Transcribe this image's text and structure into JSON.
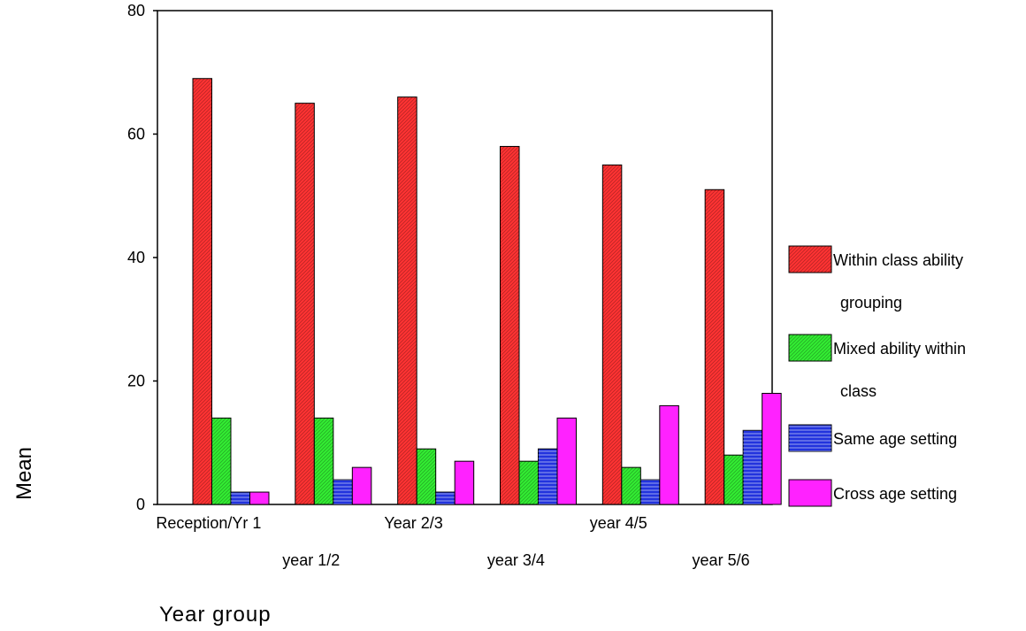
{
  "chart_data": {
    "type": "bar",
    "xlabel": "Year group",
    "ylabel": "Mean",
    "ylim": [
      0,
      80
    ],
    "yticks": [
      0,
      20,
      40,
      60,
      80
    ],
    "grid": false,
    "legend_position": "right",
    "categories": [
      "Reception/Yr 1",
      "year 1/2",
      "Year 2/3",
      "year 3/4",
      "year 4/5",
      "year 5/6"
    ],
    "series": [
      {
        "name": "Within class ability grouping",
        "legend_lines": [
          "Within class ability",
          "grouping"
        ],
        "color": "#ff3333",
        "hatch": "diagonal",
        "values": [
          69,
          65,
          66,
          58,
          55,
          51
        ]
      },
      {
        "name": "Mixed ability within class",
        "legend_lines": [
          "Mixed ability within",
          "class"
        ],
        "color": "#33ee33",
        "hatch": "diagonal",
        "values": [
          14,
          14,
          9,
          7,
          6,
          8
        ]
      },
      {
        "name": "Same age setting",
        "legend_lines": [
          "Same age setting"
        ],
        "color": "#2233dd",
        "hatch": "horizontal",
        "values": [
          2,
          4,
          2,
          9,
          4,
          12
        ]
      },
      {
        "name": "Cross age setting",
        "legend_lines": [
          "Cross age setting"
        ],
        "color": "#ff22ff",
        "hatch": "none",
        "values": [
          2,
          6,
          7,
          14,
          16,
          18
        ]
      }
    ]
  }
}
